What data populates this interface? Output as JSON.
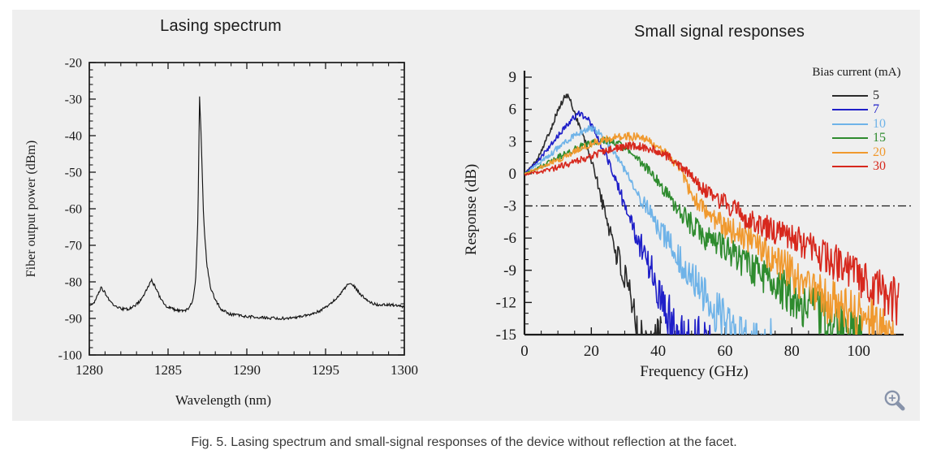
{
  "figure": {
    "caption": "Fig. 5. Lasing spectrum and small-signal responses of the device without reflection at the facet.",
    "panel_background": "#efefef",
    "zoom_icon_color": "#8793aa"
  },
  "chart_data": [
    {
      "id": "lasing_spectrum",
      "type": "line",
      "title": "Lasing spectrum",
      "xlabel": "Wavelength (nm)",
      "ylabel": "Fiber output power (dBm)",
      "xlim": [
        1280,
        1300
      ],
      "ylim": [
        -100,
        -20
      ],
      "xticks": [
        1280,
        1285,
        1290,
        1295,
        1300
      ],
      "yticks": [
        -20,
        -30,
        -40,
        -50,
        -60,
        -70,
        -80,
        -90,
        -100
      ],
      "x_minor_step": 1,
      "y_minor_step": 2,
      "axis_style": "box",
      "grid": false,
      "peaks": [
        {
          "wavelength_nm": 1280.7,
          "power_dbm": -81.6
        },
        {
          "wavelength_nm": 1284.0,
          "power_dbm": -79.6
        },
        {
          "wavelength_nm": 1287.0,
          "power_dbm": -29.3,
          "note": "main lasing peak"
        },
        {
          "wavelength_nm": 1296.5,
          "power_dbm": -80.4
        }
      ],
      "noise_floor_dbm": -90,
      "series": [
        {
          "name": "spectrum",
          "color": "#141414",
          "points": [
            [
              1280,
              -86.6
            ],
            [
              1280.3,
              -85.6
            ],
            [
              1280.55,
              -83.5
            ],
            [
              1280.75,
              -81.6
            ],
            [
              1281,
              -83
            ],
            [
              1281.3,
              -85.3
            ],
            [
              1281.7,
              -86.9
            ],
            [
              1282.1,
              -87.4
            ],
            [
              1282.5,
              -87.4
            ],
            [
              1282.9,
              -86.6
            ],
            [
              1283.3,
              -84.8
            ],
            [
              1283.7,
              -81.8
            ],
            [
              1283.95,
              -79.6
            ],
            [
              1284.2,
              -81.5
            ],
            [
              1284.5,
              -84.4
            ],
            [
              1284.9,
              -86.6
            ],
            [
              1285.4,
              -87.6
            ],
            [
              1285.9,
              -88
            ],
            [
              1286.3,
              -87.4
            ],
            [
              1286.55,
              -85.5
            ],
            [
              1286.75,
              -80
            ],
            [
              1286.9,
              -62
            ],
            [
              1287.0,
              -29.3
            ],
            [
              1287.1,
              -40
            ],
            [
              1287.25,
              -62
            ],
            [
              1287.45,
              -75
            ],
            [
              1287.7,
              -81.5
            ],
            [
              1288,
              -85
            ],
            [
              1288.4,
              -87.6
            ],
            [
              1288.9,
              -88.8
            ],
            [
              1289.6,
              -89.3
            ],
            [
              1290.5,
              -89.6
            ],
            [
              1291.5,
              -89.9
            ],
            [
              1292.5,
              -90
            ],
            [
              1293.3,
              -89.6
            ],
            [
              1294,
              -88.9
            ],
            [
              1294.7,
              -87.8
            ],
            [
              1295.3,
              -86.2
            ],
            [
              1295.8,
              -84
            ],
            [
              1296.2,
              -81.8
            ],
            [
              1296.5,
              -80.4
            ],
            [
              1296.8,
              -81.2
            ],
            [
              1297.2,
              -83.3
            ],
            [
              1297.6,
              -85
            ],
            [
              1298,
              -86
            ],
            [
              1298.5,
              -86.3
            ],
            [
              1299,
              -86.2
            ],
            [
              1299.5,
              -86.5
            ],
            [
              1300,
              -86.8
            ]
          ]
        }
      ]
    },
    {
      "id": "small_signal_responses",
      "type": "line",
      "title": "Small signal responses",
      "xlabel": "Frequency (GHz)",
      "ylabel": "Response (dB)",
      "xlim": [
        0,
        112
      ],
      "ylim": [
        -15,
        9
      ],
      "xticks": [
        0,
        20,
        40,
        60,
        80,
        100
      ],
      "yticks": [
        9,
        6,
        3,
        0,
        -3,
        -6,
        -9,
        -12,
        -15
      ],
      "x_minor_step": 5,
      "y_minor_step": 1,
      "axis_style": "lr",
      "grid": false,
      "reference_line": {
        "value_db": -3,
        "style": "dash-dot",
        "color": "#1a1a1a"
      },
      "legend": {
        "title": "Bias current (mA)",
        "entries": [
          {
            "label": "5",
            "color": "#2b2b2b"
          },
          {
            "label": "7",
            "color": "#1f1fc8"
          },
          {
            "label": "10",
            "color": "#6fb3e8"
          },
          {
            "label": "15",
            "color": "#2e8b2e"
          },
          {
            "label": "20",
            "color": "#f0992e"
          },
          {
            "label": "30",
            "color": "#d7281d"
          }
        ]
      },
      "series": [
        {
          "name": "5 mA",
          "color": "#2b2b2b",
          "f3db_ghz": 23,
          "peak": {
            "ghz": 12.8,
            "db": 7.3
          },
          "end_ghz": 41,
          "points": [
            [
              0,
              0
            ],
            [
              2,
              0.6
            ],
            [
              4,
              1.5
            ],
            [
              6,
              2.8
            ],
            [
              8,
              4.3
            ],
            [
              10,
              5.9
            ],
            [
              12,
              7.1
            ],
            [
              12.8,
              7.3
            ],
            [
              13.6,
              6.9
            ],
            [
              15,
              5.7
            ],
            [
              16.5,
              4.4
            ],
            [
              18,
              3.1
            ],
            [
              19.5,
              1.7
            ],
            [
              21,
              0.2
            ],
            [
              22.5,
              -1.6
            ],
            [
              23.5,
              -3
            ],
            [
              25,
              -4.6
            ],
            [
              26.5,
              -6.2
            ],
            [
              28,
              -7.8
            ],
            [
              29.5,
              -9.4
            ],
            [
              31,
              -11.2
            ],
            [
              32.5,
              -13
            ],
            [
              34,
              -14.6
            ],
            [
              35.5,
              -15.4
            ],
            [
              41,
              -15.6
            ]
          ]
        },
        {
          "name": "7 mA",
          "color": "#1f1fc8",
          "f3db_ghz": 30,
          "peak": {
            "ghz": 16.5,
            "db": 5.6
          },
          "end_ghz": 56,
          "points": [
            [
              0,
              0
            ],
            [
              3,
              0.9
            ],
            [
              6,
              1.9
            ],
            [
              9,
              3.1
            ],
            [
              12,
              4.3
            ],
            [
              14.5,
              5.2
            ],
            [
              16.5,
              5.6
            ],
            [
              18,
              5.4
            ],
            [
              19.5,
              4.8
            ],
            [
              21,
              3.9
            ],
            [
              22.5,
              2.9
            ],
            [
              24,
              1.9
            ],
            [
              25.5,
              0.9
            ],
            [
              27,
              -0.3
            ],
            [
              28.5,
              -1.6
            ],
            [
              30,
              -3
            ],
            [
              32,
              -4.6
            ],
            [
              34,
              -6.1
            ],
            [
              36,
              -7.6
            ],
            [
              38,
              -9.1
            ],
            [
              40,
              -10.7
            ],
            [
              42,
              -12.2
            ],
            [
              44,
              -13.6
            ],
            [
              46,
              -14.8
            ],
            [
              48,
              -15.4
            ],
            [
              56,
              -15.6
            ]
          ]
        },
        {
          "name": "10 mA",
          "color": "#6fb3e8",
          "f3db_ghz": 37,
          "peak": {
            "ghz": 20,
            "db": 4.2
          },
          "end_ghz": 76,
          "points": [
            [
              0,
              0
            ],
            [
              4,
              0.9
            ],
            [
              8,
              1.9
            ],
            [
              12,
              2.9
            ],
            [
              15,
              3.6
            ],
            [
              18,
              4.1
            ],
            [
              20,
              4.2
            ],
            [
              22,
              3.9
            ],
            [
              24,
              3.2
            ],
            [
              26,
              2.3
            ],
            [
              28,
              1.4
            ],
            [
              30,
              0.4
            ],
            [
              32,
              -0.8
            ],
            [
              34,
              -2
            ],
            [
              36,
              -2.9
            ],
            [
              37,
              -3.3
            ],
            [
              39,
              -4.4
            ],
            [
              42,
              -5.9
            ],
            [
              45,
              -7.3
            ],
            [
              48,
              -8.7
            ],
            [
              51,
              -10.1
            ],
            [
              54,
              -11.5
            ],
            [
              57,
              -12.8
            ],
            [
              60,
              -14
            ],
            [
              63,
              -15
            ],
            [
              66,
              -15.5
            ],
            [
              76,
              -15.6
            ]
          ]
        },
        {
          "name": "15 mA",
          "color": "#2e8b2e",
          "f3db_ghz": 46,
          "peak": {
            "ghz": 23,
            "db": 3.1
          },
          "end_ghz": 101,
          "points": [
            [
              0,
              0
            ],
            [
              5,
              0.7
            ],
            [
              10,
              1.5
            ],
            [
              15,
              2.3
            ],
            [
              19,
              2.8
            ],
            [
              23,
              3.1
            ],
            [
              26,
              3.0
            ],
            [
              29,
              2.6
            ],
            [
              32,
              1.9
            ],
            [
              35,
              1.0
            ],
            [
              38,
              0.1
            ],
            [
              41,
              -1.2
            ],
            [
              44,
              -2.5
            ],
            [
              46,
              -3.2
            ],
            [
              49,
              -4.4
            ],
            [
              52,
              -5.4
            ],
            [
              56,
              -6.3
            ],
            [
              60,
              -6.9
            ],
            [
              64,
              -7.9
            ],
            [
              68,
              -8.9
            ],
            [
              72,
              -9.7
            ],
            [
              76,
              -10.6
            ],
            [
              80,
              -11.4
            ],
            [
              84,
              -12.3
            ],
            [
              88,
              -13.1
            ],
            [
              92,
              -13.9
            ],
            [
              96,
              -14.6
            ],
            [
              101,
              -15.2
            ]
          ]
        },
        {
          "name": "20 mA",
          "color": "#f0992e",
          "f3db_ghz": 53,
          "peak": {
            "ghz": 30,
            "db": 3.5
          },
          "end_ghz": 111,
          "points": [
            [
              0,
              0
            ],
            [
              5,
              0.6
            ],
            [
              10,
              1.3
            ],
            [
              15,
              2.1
            ],
            [
              20,
              2.8
            ],
            [
              25,
              3.3
            ],
            [
              30,
              3.5
            ],
            [
              34,
              3.4
            ],
            [
              38,
              3.0
            ],
            [
              41,
              2.3
            ],
            [
              44,
              1.4
            ],
            [
              46,
              0.6
            ],
            [
              48,
              -0.6
            ],
            [
              50,
              -1.9
            ],
            [
              52,
              -2.8
            ],
            [
              54,
              -3.5
            ],
            [
              57,
              -4.3
            ],
            [
              60,
              -4.9
            ],
            [
              64,
              -5.7
            ],
            [
              68,
              -6.3
            ],
            [
              72,
              -7.1
            ],
            [
              76,
              -8.2
            ],
            [
              80,
              -9.3
            ],
            [
              84,
              -10.4
            ],
            [
              88,
              -11.3
            ],
            [
              92,
              -12.1
            ],
            [
              96,
              -12.8
            ],
            [
              100,
              -13.3
            ],
            [
              105,
              -14
            ],
            [
              111,
              -14.6
            ]
          ]
        },
        {
          "name": "30 mA",
          "color": "#d7281d",
          "f3db_ghz": 63,
          "peak": {
            "ghz": 33,
            "db": 2.6
          },
          "end_ghz": 112,
          "points": [
            [
              0,
              -0.1
            ],
            [
              5,
              0.2
            ],
            [
              10,
              0.6
            ],
            [
              15,
              1.1
            ],
            [
              20,
              1.6
            ],
            [
              25,
              2.2
            ],
            [
              29,
              2.5
            ],
            [
              33,
              2.6
            ],
            [
              37,
              2.4
            ],
            [
              40,
              2.1
            ],
            [
              43,
              1.6
            ],
            [
              46,
              0.9
            ],
            [
              49,
              0.1
            ],
            [
              52,
              -1
            ],
            [
              55,
              -1.9
            ],
            [
              58,
              -2.4
            ],
            [
              61,
              -2.9
            ],
            [
              64,
              -3.6
            ],
            [
              67,
              -4.3
            ],
            [
              70,
              -4.8
            ],
            [
              73,
              -5.1
            ],
            [
              76,
              -5.4
            ],
            [
              80,
              -5.8
            ],
            [
              84,
              -6.6
            ],
            [
              88,
              -7.4
            ],
            [
              92,
              -8.1
            ],
            [
              96,
              -8.8
            ],
            [
              100,
              -9.7
            ],
            [
              104,
              -10.5
            ],
            [
              108,
              -11.3
            ],
            [
              112,
              -12
            ]
          ]
        }
      ]
    }
  ]
}
